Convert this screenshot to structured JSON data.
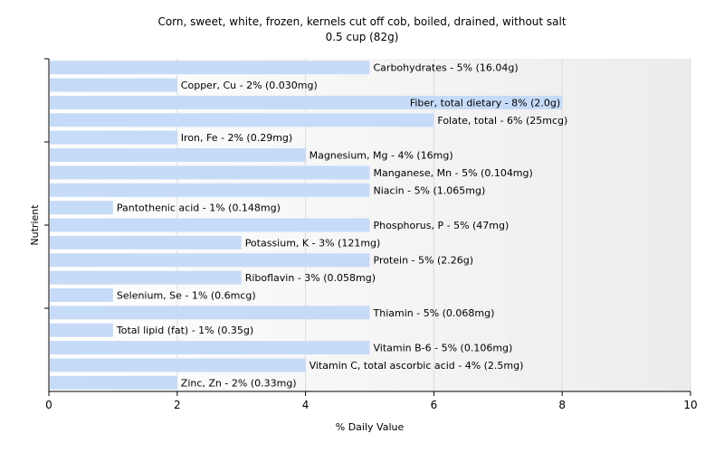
{
  "chart_data": {
    "type": "bar",
    "orientation": "horizontal",
    "title": "Corn, sweet, white, frozen, kernels cut off cob, boiled, drained, without salt",
    "subtitle": "0.5 cup (82g)",
    "xlabel": "% Daily Value",
    "ylabel": "Nutrient",
    "xlim": [
      0,
      10
    ],
    "xticks": [
      0,
      2,
      4,
      6,
      8,
      10
    ],
    "grid": true,
    "bar_color": "#c6dbf7",
    "categories": [
      "Carbohydrates",
      "Copper, Cu",
      "Fiber, total dietary",
      "Folate, total",
      "Iron, Fe",
      "Magnesium, Mg",
      "Manganese, Mn",
      "Niacin",
      "Pantothenic acid",
      "Phosphorus, P",
      "Potassium, K",
      "Protein",
      "Riboflavin",
      "Selenium, Se",
      "Thiamin",
      "Total lipid (fat)",
      "Vitamin B-6",
      "Vitamin C, total ascorbic acid",
      "Zinc, Zn"
    ],
    "values": [
      5,
      2,
      8,
      6,
      2,
      4,
      5,
      5,
      1,
      5,
      3,
      5,
      3,
      1,
      5,
      1,
      5,
      4,
      2
    ],
    "labels": [
      "Carbohydrates - 5% (16.04g)",
      "Copper, Cu - 2% (0.030mg)",
      "Fiber, total dietary - 8% (2.0g)",
      "Folate, total - 6% (25mcg)",
      "Iron, Fe - 2% (0.29mg)",
      "Magnesium, Mg - 4% (16mg)",
      "Manganese, Mn - 5% (0.104mg)",
      "Niacin - 5% (1.065mg)",
      "Pantothenic acid - 1% (0.148mg)",
      "Phosphorus, P - 5% (47mg)",
      "Potassium, K - 3% (121mg)",
      "Protein - 5% (2.26g)",
      "Riboflavin - 3% (0.058mg)",
      "Selenium, Se - 1% (0.6mcg)",
      "Thiamin - 5% (0.068mg)",
      "Total lipid (fat) - 1% (0.35g)",
      "Vitamin B-6 - 5% (0.106mg)",
      "Vitamin C, total ascorbic acid - 4% (2.5mg)",
      "Zinc, Zn - 2% (0.33mg)"
    ]
  }
}
